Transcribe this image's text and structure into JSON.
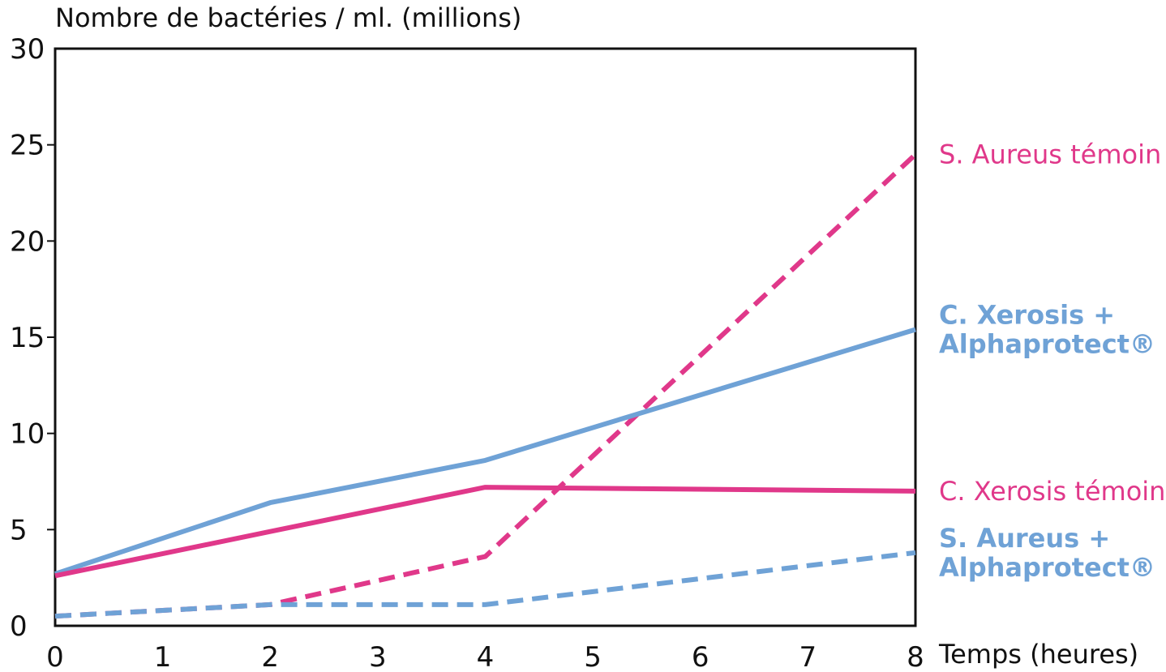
{
  "chart_data": {
    "type": "line",
    "title": "",
    "xlabel": "Temps (heures)",
    "ylabel": "Nombre de bactéries / ml. (millions)",
    "xlim": [
      0,
      8
    ],
    "ylim": [
      0,
      30
    ],
    "grid": false,
    "x_ticks": [
      0,
      1,
      2,
      3,
      4,
      5,
      6,
      7,
      8
    ],
    "y_ticks": [
      0,
      5,
      10,
      15,
      20,
      25,
      30
    ],
    "legend_placement": "right",
    "series": [
      {
        "name": "S. Aureus témoin",
        "color": "#e0388a",
        "dashed": true,
        "bold": false,
        "x": [
          0,
          2,
          4,
          8
        ],
        "y": [
          0.5,
          1.1,
          3.6,
          24.5
        ]
      },
      {
        "name": "C. Xerosis + Alphaprotect®",
        "name_lines": [
          "C. Xerosis +",
          "Alphaprotect®"
        ],
        "color": "#6fa2d6",
        "dashed": false,
        "bold": true,
        "x": [
          0,
          2,
          4,
          8
        ],
        "y": [
          2.7,
          6.4,
          8.6,
          15.4
        ]
      },
      {
        "name": "C. Xerosis témoin",
        "color": "#e0388a",
        "dashed": false,
        "bold": false,
        "x": [
          0,
          2,
          4,
          8
        ],
        "y": [
          2.6,
          4.9,
          7.2,
          7.0
        ]
      },
      {
        "name": "S. Aureus + Alphaprotect®",
        "name_lines": [
          "S. Aureus +",
          "Alphaprotect®"
        ],
        "color": "#6fa2d6",
        "dashed": true,
        "bold": true,
        "x": [
          0,
          2,
          4,
          8
        ],
        "y": [
          0.5,
          1.1,
          1.1,
          3.8
        ]
      }
    ]
  }
}
